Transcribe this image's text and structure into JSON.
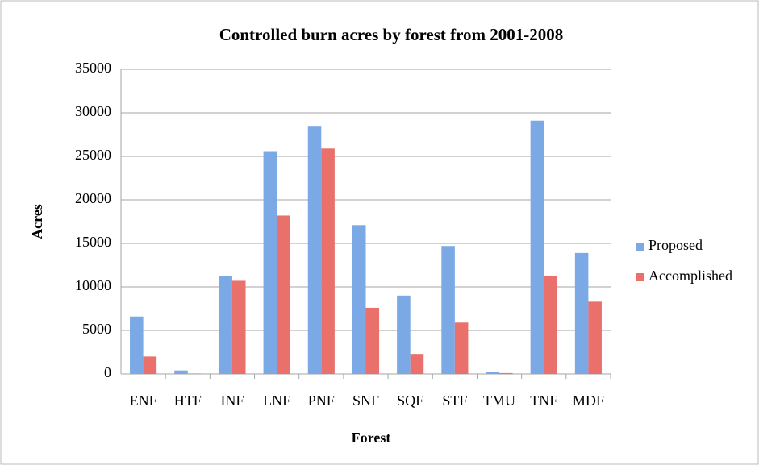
{
  "chart_data": {
    "type": "bar",
    "title": "Controlled burn acres by forest from 2001-2008",
    "x_label": "Forest",
    "y_label": "Acres",
    "categories": [
      "ENF",
      "HTF",
      "INF",
      "LNF",
      "PNF",
      "SNF",
      "SQF",
      "STF",
      "TMU",
      "TNF",
      "MDF"
    ],
    "series": [
      {
        "name": "Proposed",
        "color": "#7aa9e6",
        "values": [
          6600,
          400,
          11300,
          25600,
          28500,
          17100,
          9000,
          14700,
          200,
          29100,
          13900
        ]
      },
      {
        "name": "Accomplished",
        "color": "#ea716b",
        "values": [
          2000,
          50,
          10700,
          18200,
          25900,
          7600,
          2300,
          5900,
          100,
          11300,
          8300
        ]
      }
    ],
    "ylim": [
      0,
      35000
    ],
    "yticks": [
      0,
      5000,
      10000,
      15000,
      20000,
      25000,
      30000,
      35000
    ],
    "grid": true,
    "legend": "right"
  }
}
